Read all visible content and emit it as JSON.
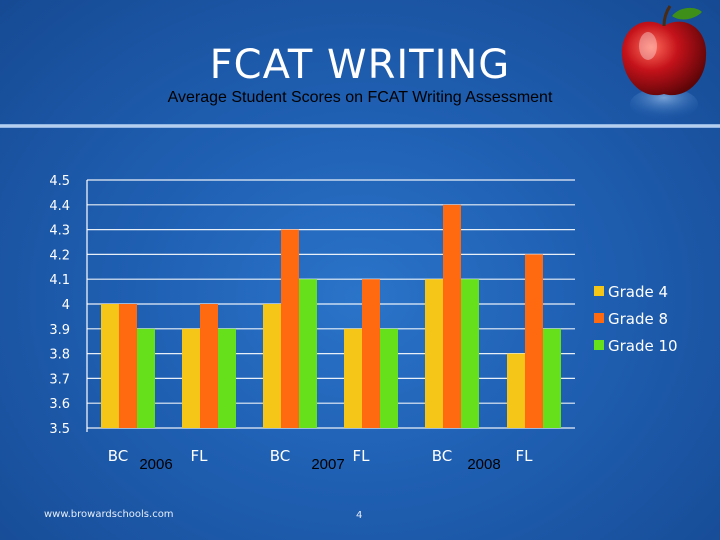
{
  "slide": {
    "title": "FCAT WRITING",
    "subtitle": "Average Student Scores on FCAT Writing Assessment",
    "footer_url": "www.browardschools.com",
    "page_number": "4",
    "year_labels": [
      "2006",
      "2007",
      "2008"
    ],
    "decoration_icon": "red-apple-icon"
  },
  "chart_data": {
    "type": "bar",
    "categories": [
      "BC",
      "FL",
      "BC",
      "FL",
      "BC",
      "FL"
    ],
    "groups": [
      {
        "label": "2006",
        "categories": [
          "BC",
          "FL"
        ]
      },
      {
        "label": "2007",
        "categories": [
          "BC",
          "FL"
        ]
      },
      {
        "label": "2008",
        "categories": [
          "BC",
          "FL"
        ]
      }
    ],
    "series": [
      {
        "name": "Grade 4",
        "color": "#f5c518",
        "values": [
          4.0,
          3.9,
          4.0,
          3.9,
          4.1,
          3.8
        ]
      },
      {
        "name": "Grade 8",
        "color": "#ff6a10",
        "values": [
          4.0,
          4.0,
          4.3,
          4.1,
          4.4,
          4.2
        ]
      },
      {
        "name": "Grade 10",
        "color": "#66e01a",
        "values": [
          3.9,
          3.9,
          4.1,
          3.9,
          4.1,
          3.9
        ]
      }
    ],
    "ylim": [
      3.5,
      4.5
    ],
    "yticks": [
      "3.5",
      "3.6",
      "3.7",
      "3.8",
      "3.9",
      "4",
      "4.1",
      "4.2",
      "4.3",
      "4.4",
      "4.5"
    ],
    "grid": true,
    "legend_position": "right"
  }
}
